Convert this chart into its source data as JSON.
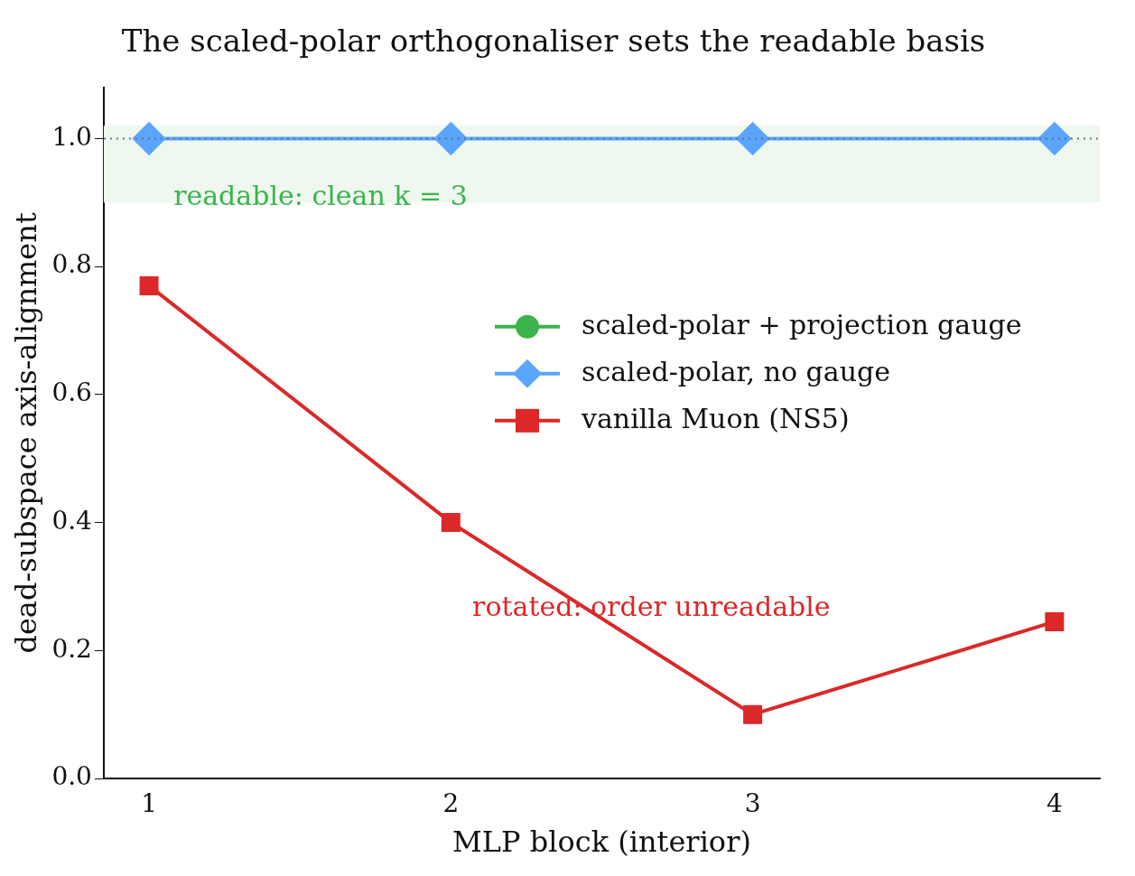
{
  "chart_data": {
    "type": "line",
    "title": "The scaled-polar orthogonaliser sets the readable basis",
    "xlabel": "MLP block (interior)",
    "ylabel": "dead-subspace axis-alignment",
    "x": [
      1,
      2,
      3,
      4
    ],
    "series": [
      {
        "name": "scaled-polar + projection gauge",
        "color": "#3cb44b",
        "values": [
          null,
          null,
          null,
          null
        ],
        "marker": "circle"
      },
      {
        "name": "scaled-polar, no gauge",
        "color": "#5aa5ff",
        "values": [
          1.0,
          1.0,
          1.0,
          1.0
        ],
        "marker": "diamond"
      },
      {
        "name": "vanilla Muon (NS5)",
        "color": "#dc2828",
        "values": [
          0.77,
          0.4,
          0.1,
          0.245
        ],
        "marker": "square"
      }
    ],
    "xlim": [
      0.85,
      4.15
    ],
    "xticks": [
      1,
      2,
      3,
      4
    ],
    "ylim": [
      0,
      1.08
    ],
    "yticks": [
      {
        "value": 0,
        "label": "0.0"
      },
      0.2,
      0.4,
      0.6,
      0.8,
      {
        "value": 1,
        "label": "1.0"
      }
    ],
    "ref_lines": [
      {
        "axis": "y",
        "value": 1.0,
        "color": "#66707a",
        "line_style": "dotted"
      }
    ],
    "bands": [
      {
        "axis": "y",
        "from": 0.9,
        "to": 1.02,
        "color": "#eef8ef"
      }
    ],
    "annotations": [
      "readable: clean k = 3",
      "rotated: order unreadable"
    ],
    "legend": "center right",
    "grid": false,
    "line_style": "solid"
  }
}
